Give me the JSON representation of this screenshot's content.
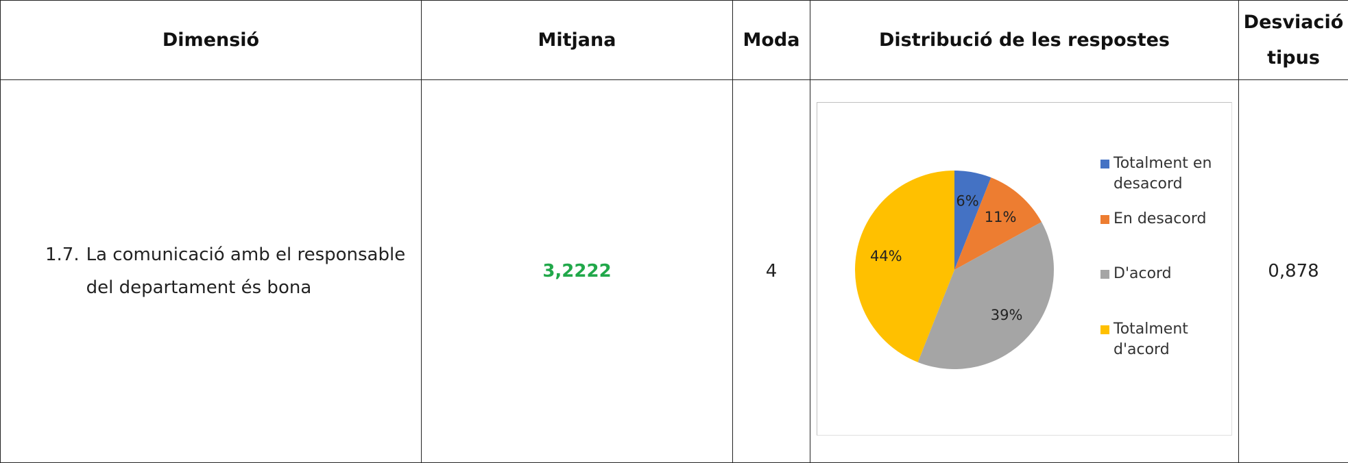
{
  "table": {
    "headers": [
      "Dimensió",
      "Mitjana",
      "Moda",
      "Distribució de les respostes",
      "Desviació tipus"
    ],
    "rows": [
      {
        "number": "1.7.",
        "text": "La comunicació amb el responsable del departament és bona",
        "mean": "3,2222",
        "mode": "4",
        "std": "0,878"
      }
    ]
  },
  "chart_data": {
    "type": "pie",
    "categories": [
      "Totalment en desacord",
      "En desacord",
      "D'acord",
      "Totalment d'acord"
    ],
    "values": [
      6,
      11,
      39,
      44
    ],
    "value_labels": [
      "6%",
      "11%",
      "39%",
      "44%"
    ],
    "colors": [
      "#4472c4",
      "#ed7d31",
      "#a5a5a5",
      "#ffc000"
    ],
    "legend": "right"
  }
}
